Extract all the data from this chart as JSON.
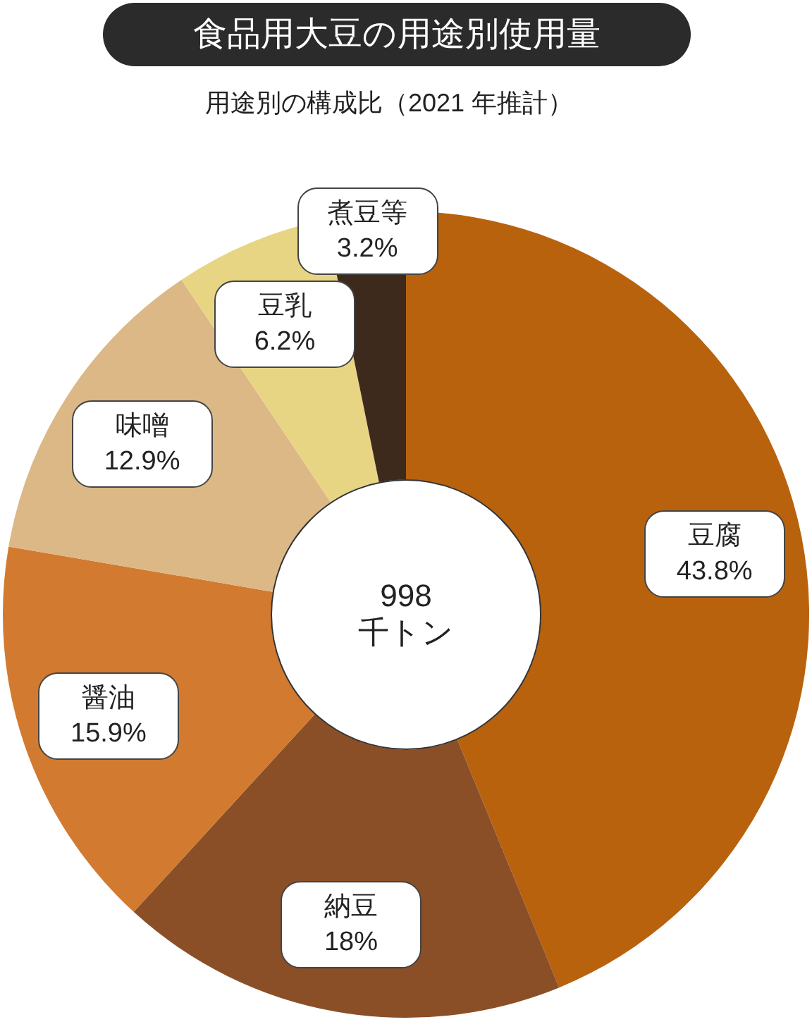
{
  "chart_data": {
    "type": "donut",
    "title": "食品用大豆の用途別使用量",
    "subtitle": "用途別の構成比（2021 年推計）",
    "categories": [
      "豆腐",
      "納豆",
      "醤油",
      "味噌",
      "豆乳",
      "煮豆等"
    ],
    "values": [
      43.8,
      18,
      15.9,
      12.9,
      6.2,
      3.2
    ],
    "colors": [
      "#b8620e",
      "#8b4f28",
      "#d27a30",
      "#dbb886",
      "#e8d584",
      "#3d2a1c"
    ],
    "value_labels": [
      "43.8%",
      "18%",
      "15.9%",
      "12.9%",
      "6.2%",
      "3.2%"
    ],
    "annotations": [
      "998 千トン"
    ],
    "legend": false
  }
}
